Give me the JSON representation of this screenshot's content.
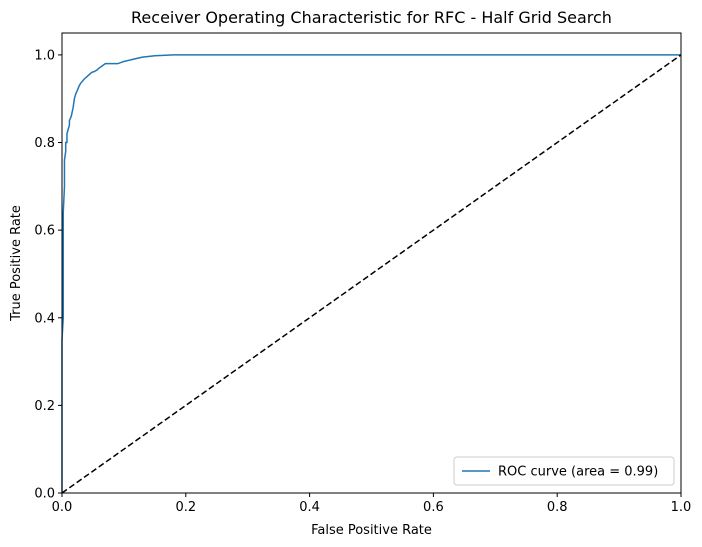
{
  "chart_data": {
    "type": "line",
    "title": "Receiver Operating Characteristic for RFC - Half Grid Search",
    "xlabel": "False Positive Rate",
    "ylabel": "True Positive Rate",
    "xlim": [
      0.0,
      1.0
    ],
    "ylim": [
      0.0,
      1.05
    ],
    "x_ticks": [
      "0.0",
      "0.2",
      "0.4",
      "0.6",
      "0.8",
      "1.0"
    ],
    "y_ticks": [
      "0.0",
      "0.2",
      "0.4",
      "0.6",
      "0.8",
      "1.0"
    ],
    "grid": false,
    "legend_position": "lower right",
    "series": [
      {
        "name": "ROC curve (area = 0.99)",
        "color": "#1f77b4",
        "style": "solid",
        "x": [
          0.0,
          0.0,
          0.002,
          0.002,
          0.004,
          0.004,
          0.006,
          0.006,
          0.008,
          0.008,
          0.01,
          0.012,
          0.012,
          0.015,
          0.018,
          0.02,
          0.022,
          0.025,
          0.028,
          0.03,
          0.033,
          0.036,
          0.04,
          0.044,
          0.048,
          0.052,
          0.056,
          0.06,
          0.065,
          0.07,
          0.078,
          0.09,
          0.1,
          0.115,
          0.13,
          0.15,
          0.18,
          0.2,
          1.0
        ],
        "y": [
          0.0,
          0.35,
          0.4,
          0.64,
          0.7,
          0.76,
          0.78,
          0.8,
          0.8,
          0.82,
          0.83,
          0.84,
          0.85,
          0.86,
          0.88,
          0.9,
          0.91,
          0.92,
          0.93,
          0.935,
          0.94,
          0.945,
          0.95,
          0.955,
          0.96,
          0.962,
          0.965,
          0.97,
          0.975,
          0.98,
          0.98,
          0.98,
          0.985,
          0.99,
          0.995,
          0.998,
          1.0,
          1.0,
          1.0
        ]
      },
      {
        "color": "#000000",
        "style": "dashed",
        "x": [
          0.0,
          1.0
        ],
        "y": [
          0.0,
          1.0
        ]
      }
    ]
  }
}
